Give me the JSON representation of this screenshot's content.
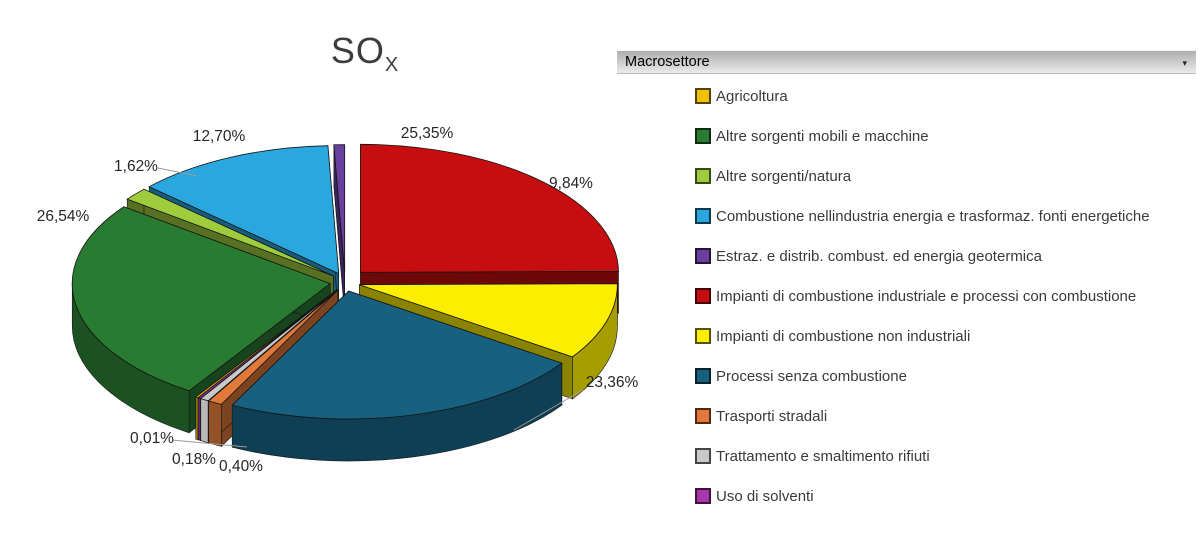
{
  "chart": {
    "title": "SO",
    "title_subscript": "X"
  },
  "legend": {
    "header": {
      "label": "Macrosettore",
      "dropdown_icon": "▾"
    },
    "items": [
      {
        "label": "Agricoltura",
        "color": "#EFC100"
      },
      {
        "label": "Altre sorgenti mobili e macchine",
        "color": "#2A7B32"
      },
      {
        "label": "Altre sorgenti/natura",
        "color": "#9ECC3C"
      },
      {
        "label": "Combustione nellindustria energia e trasformaz. fonti energetiche",
        "color": "#29A7DE"
      },
      {
        "label": "Estraz. e distrib. combust. ed energia geotermica",
        "color": "#6B3FA0"
      },
      {
        "label": "Impianti di combustione industriale e processi con combustione",
        "color": "#C60E10"
      },
      {
        "label": "Impianti di combustione non industriali",
        "color": "#FBEE00"
      },
      {
        "label": "Processi senza combustione",
        "color": "#17607F"
      },
      {
        "label": "Trasporti stradali",
        "color": "#E0793A"
      },
      {
        "label": "Trattamento e smaltimento rifiuti",
        "color": "#C9C9C9"
      },
      {
        "label": "Uso di solventi",
        "color": "#A837AC"
      }
    ]
  },
  "chart_data": {
    "type": "pie",
    "title": "SOx",
    "unit": "%",
    "style": "3d-exploded",
    "legend_position": "right",
    "slices": [
      {
        "id": "impianti-combustione-industriale",
        "legend_label": "Impianti di combustione industriale e processi con combustione",
        "value": 25.35,
        "label": "25,35%",
        "color": "#C60E10"
      },
      {
        "id": "impianti-combustione-non-industriali",
        "legend_label": "Impianti di combustione non industriali",
        "value": 9.84,
        "label": "9,84%",
        "color": "#FBEE00"
      },
      {
        "id": "processi-senza-combustione",
        "legend_label": "Processi senza combustione",
        "value": 23.36,
        "label": "23,36%",
        "color": "#17607F"
      },
      {
        "id": "trasporti-stradali",
        "legend_label": "Trasporti stradali",
        "value": 0.4,
        "label": "0,40%",
        "color": "#E0793A"
      },
      {
        "id": "trattamento-e-smaltimento-rifiuti",
        "legend_label": "Trattamento e smaltimento rifiuti",
        "value": 0.18,
        "label": "0,18%",
        "color": "#C9C9C9"
      },
      {
        "id": "uso-di-solventi",
        "legend_label": "Uso di solventi",
        "value": 0.01,
        "label": "0,01%",
        "color": "#A837AC"
      },
      {
        "id": "agricoltura",
        "legend_label": "Agricoltura",
        "value": null,
        "label": null,
        "color": "#EFC100"
      },
      {
        "id": "altre-sorgenti-mobili-e-macchine",
        "legend_label": "Altre sorgenti mobili e macchine",
        "value": 26.54,
        "label": "26,54%",
        "color": "#2A7B32"
      },
      {
        "id": "altre-sorgenti-natura",
        "legend_label": "Altre sorgenti/natura",
        "value": 1.62,
        "label": "1,62%",
        "color": "#9ECC3C"
      },
      {
        "id": "combustione-industria-energia",
        "legend_label": "Combustione nellindustria energia e trasformaz. fonti energetiche",
        "value": 12.7,
        "label": "12,70%",
        "color": "#29A7DE"
      },
      {
        "id": "estraz-distrib-combust",
        "legend_label": "Estraz. e distrib. combust. ed energia geotermica",
        "value": null,
        "label": null,
        "color": "#6B3FA0"
      }
    ]
  }
}
